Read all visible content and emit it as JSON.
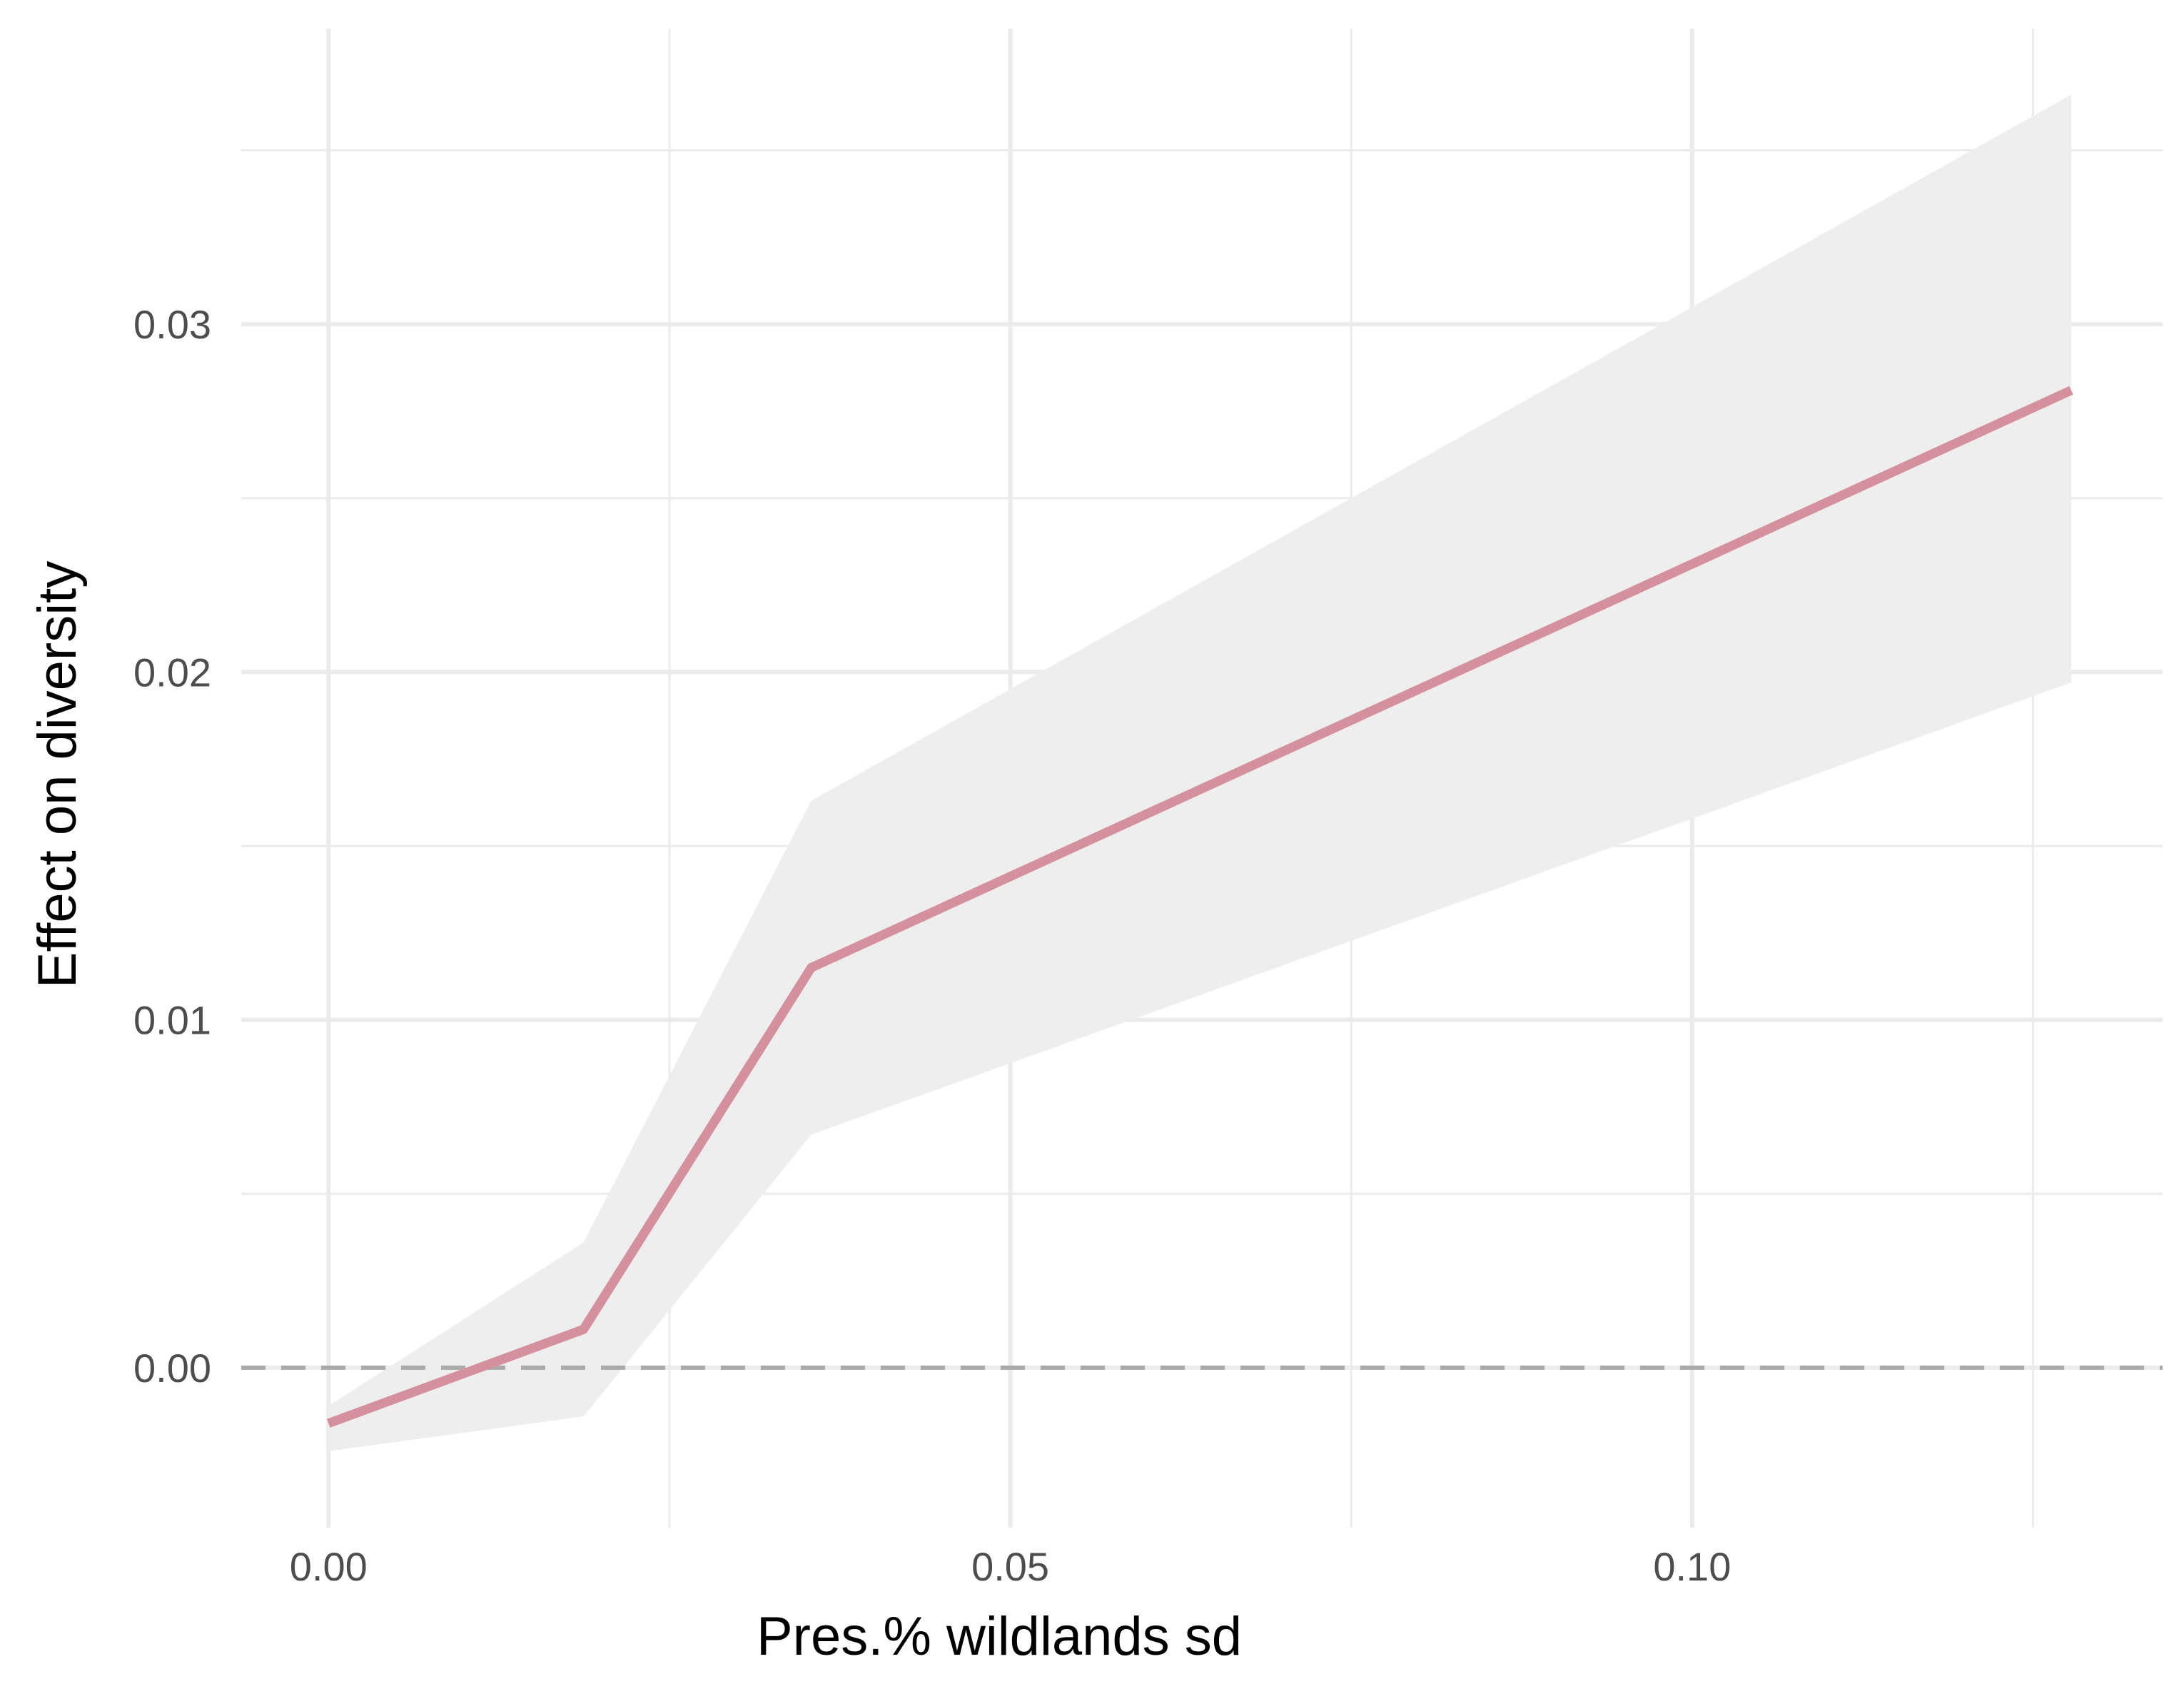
{
  "chart_data": {
    "type": "line",
    "title": "",
    "xlabel": "Pres.% wildlands sd",
    "ylabel": "Effect on diversity",
    "xlim": [
      -0.0064,
      0.1345
    ],
    "ylim": [
      -0.0046,
      0.0385
    ],
    "x_ticks": [
      0.0,
      0.05,
      0.1
    ],
    "x_tick_labels": [
      "0.00",
      "0.05",
      "0.10"
    ],
    "x_minor_ticks": [
      0.025,
      0.075,
      0.125
    ],
    "y_ticks": [
      0.0,
      0.01,
      0.02,
      0.03
    ],
    "y_tick_labels": [
      "0.00",
      "0.01",
      "0.02",
      "0.03"
    ],
    "y_minor_ticks": [
      0.005,
      0.015,
      0.025,
      0.035
    ],
    "grid": true,
    "reference_line": {
      "y": 0.0,
      "style": "dashed",
      "color": "#aaaaaa"
    },
    "series": [
      {
        "x": [
          0.0,
          0.0187,
          0.0354,
          0.1278
        ],
        "y": [
          -0.0016,
          0.0011,
          0.0115,
          0.0281
        ],
        "lower": [
          -0.0024,
          -0.0014,
          0.0067,
          0.0197
        ],
        "upper": [
          -0.0011,
          0.0036,
          0.0163,
          0.0366
        ],
        "color": "#d4909c",
        "band_color": "#eeeeee"
      }
    ]
  }
}
